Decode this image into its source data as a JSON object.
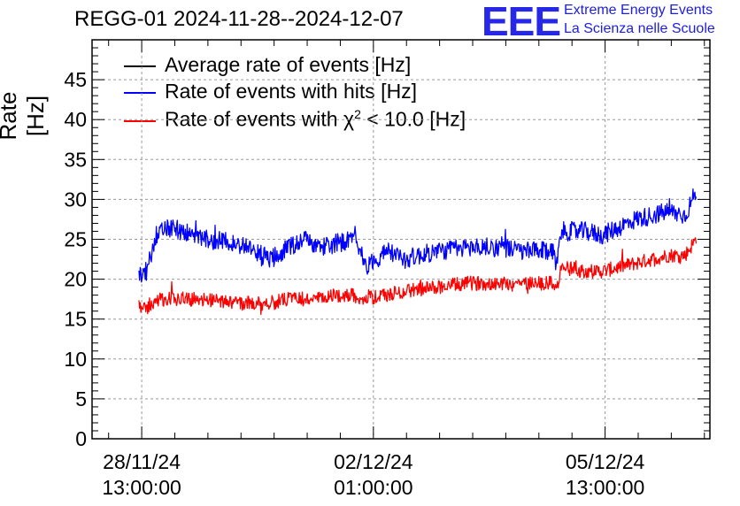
{
  "title": "REGG-01 2024-11-28--2024-12-07",
  "logo": {
    "text": "EEE",
    "line1": "Extreme Energy Events",
    "line2": "La Scienza nelle Scuole"
  },
  "legend": [
    {
      "label_pre": "Average rate of events [Hz]",
      "sup": "",
      "label_post": "",
      "color": "#000000"
    },
    {
      "label_pre": "Rate of events with hits [Hz]",
      "sup": "",
      "label_post": "",
      "color": "#0000ff"
    },
    {
      "label_pre": "Rate of events with χ",
      "sup": "2",
      "label_post": " < 10.0 [Hz]",
      "color": "#ff0000"
    }
  ],
  "chart_data": {
    "type": "line",
    "title": "REGG-01 2024-11-28--2024-12-07",
    "ylabel": "Rate [Hz]",
    "xlabel": "",
    "ylim": [
      0,
      50
    ],
    "yticks": [
      0,
      5,
      10,
      15,
      20,
      25,
      30,
      35,
      40,
      45
    ],
    "xlim": [
      "2024-11-27 19:00",
      "2024-12-07 03:00"
    ],
    "xticks": [
      {
        "line1": "28/11/24",
        "line2": "13:00:00",
        "at": "2024-11-28 13:00"
      },
      {
        "line1": "02/12/24",
        "line2": "01:00:00",
        "at": "2024-12-02 01:00"
      },
      {
        "line1": "05/12/24",
        "line2": "13:00:00",
        "at": "2024-12-05 13:00"
      }
    ],
    "grid": true,
    "legend_position": "top-left",
    "series": [
      {
        "name": "Rate of events with hits [Hz]",
        "color": "#0000ff",
        "x": [
          "2024-11-28 12:00",
          "2024-11-28 15:00",
          "2024-11-28 18:00",
          "2024-11-29 00:00",
          "2024-11-29 12:00",
          "2024-11-30 00:00",
          "2024-11-30 12:00",
          "2024-11-30 18:00",
          "2024-12-01 00:00",
          "2024-12-01 06:00",
          "2024-12-01 12:00",
          "2024-12-01 18:00",
          "2024-12-01 21:00",
          "2024-12-01 22:00",
          "2024-12-02 06:00",
          "2024-12-02 12:00",
          "2024-12-03 00:00",
          "2024-12-03 12:00",
          "2024-12-04 00:00",
          "2024-12-04 06:00",
          "2024-12-04 12:00",
          "2024-12-04 18:00",
          "2024-12-04 20:00",
          "2024-12-04 21:00",
          "2024-12-05 06:00",
          "2024-12-05 12:00",
          "2024-12-06 00:00",
          "2024-12-06 06:00",
          "2024-12-06 12:00",
          "2024-12-06 18:00",
          "2024-12-06 22:00"
        ],
        "y": [
          20.5,
          21.0,
          25.5,
          26.5,
          25.0,
          24.5,
          22.5,
          24.0,
          25.0,
          24.0,
          24.5,
          25.0,
          23.5,
          21.5,
          23.5,
          22.5,
          23.5,
          24.0,
          24.0,
          23.5,
          23.5,
          23.5,
          23.0,
          26.0,
          26.0,
          25.5,
          27.5,
          28.0,
          28.5,
          28.0,
          31.0
        ]
      },
      {
        "name": "Rate of events with χ2 < 10.0 [Hz]",
        "color": "#ff0000",
        "x": [
          "2024-11-28 12:00",
          "2024-11-28 15:00",
          "2024-11-28 18:00",
          "2024-11-29 00:00",
          "2024-11-29 12:00",
          "2024-11-30 00:00",
          "2024-11-30 12:00",
          "2024-11-30 18:00",
          "2024-12-01 00:00",
          "2024-12-01 06:00",
          "2024-12-01 12:00",
          "2024-12-01 18:00",
          "2024-12-01 21:00",
          "2024-12-01 22:00",
          "2024-12-02 06:00",
          "2024-12-02 12:00",
          "2024-12-03 00:00",
          "2024-12-03 12:00",
          "2024-12-04 00:00",
          "2024-12-04 06:00",
          "2024-12-04 12:00",
          "2024-12-04 18:00",
          "2024-12-04 20:00",
          "2024-12-04 21:00",
          "2024-12-05 06:00",
          "2024-12-05 12:00",
          "2024-12-06 00:00",
          "2024-12-06 06:00",
          "2024-12-06 12:00",
          "2024-12-06 18:00",
          "2024-12-06 22:00"
        ],
        "y": [
          16.5,
          16.5,
          17.5,
          17.5,
          17.5,
          17.0,
          17.0,
          17.5,
          17.5,
          17.5,
          18.0,
          18.0,
          17.5,
          17.5,
          18.0,
          18.5,
          19.0,
          19.5,
          19.5,
          19.5,
          19.5,
          19.5,
          19.0,
          21.5,
          21.0,
          21.0,
          22.0,
          22.5,
          23.0,
          23.0,
          25.0
        ]
      }
    ]
  }
}
